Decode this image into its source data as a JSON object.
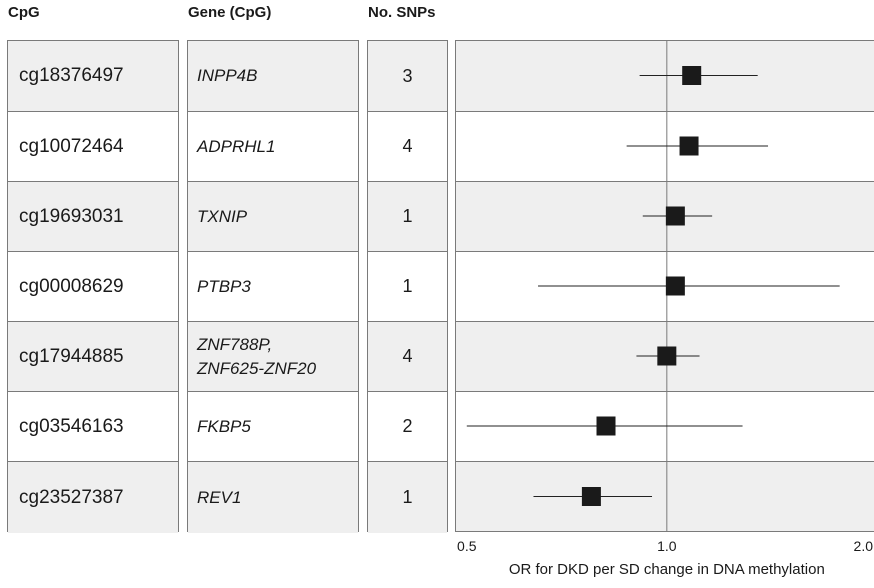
{
  "headers": {
    "cpg": "CpG",
    "gene": "Gene (CpG)",
    "snps": "No. SNPs"
  },
  "rows": [
    {
      "cpg": "cg18376497",
      "gene": "INPP4B",
      "snps": "3"
    },
    {
      "cpg": "cg10072464",
      "gene": "ADPRHL1",
      "snps": "4"
    },
    {
      "cpg": "cg19693031",
      "gene": "TXNIP",
      "snps": "1"
    },
    {
      "cpg": "cg00008629",
      "gene": "PTBP3",
      "snps": "1"
    },
    {
      "cpg": "cg17944885",
      "gene": "ZNF788P,\nZNF625-ZNF20",
      "snps": "4"
    },
    {
      "cpg": "cg03546163",
      "gene": "FKBP5",
      "snps": "2"
    },
    {
      "cpg": "cg23527387",
      "gene": "REV1",
      "snps": "1"
    }
  ],
  "chart_data": {
    "type": "scatter",
    "xscale": "log",
    "xlabel": "OR for DKD per SD change in DNA methylation",
    "xticks": [
      0.5,
      1.0,
      2.0
    ],
    "xtick_labels": [
      "0.5",
      "1.0",
      "2.0"
    ],
    "xlim": [
      0.48,
      2.05
    ],
    "reference_line": 1.0,
    "categories": [
      "cg18376497",
      "cg10072464",
      "cg19693031",
      "cg00008629",
      "cg17944885",
      "cg03546163",
      "cg23527387"
    ],
    "or": [
      1.09,
      1.08,
      1.03,
      1.03,
      1.0,
      0.81,
      0.77
    ],
    "ci_lower": [
      0.91,
      0.87,
      0.92,
      0.64,
      0.9,
      0.5,
      0.63
    ],
    "ci_upper": [
      1.37,
      1.42,
      1.17,
      1.82,
      1.12,
      1.3,
      0.95
    ],
    "row_shading": [
      "#efefef",
      "#ffffff",
      "#efefef",
      "#ffffff",
      "#efefef",
      "#ffffff",
      "#efefef"
    ],
    "marker_color": "#1a1a1a"
  }
}
